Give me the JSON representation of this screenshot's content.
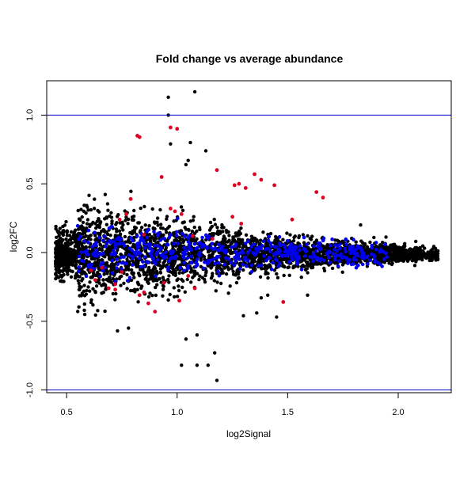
{
  "chart_data": {
    "type": "scatter",
    "title": "Fold change vs average abundance",
    "xlabel": "log2Signal",
    "ylabel": "log2FC",
    "xlim": [
      0.41,
      2.24
    ],
    "ylim": [
      -1.02,
      1.25
    ],
    "x_ticks": [
      "0.5",
      "1.0",
      "1.5",
      "2.0"
    ],
    "y_ticks": [
      "-1.0",
      "-0.5",
      "0.0",
      "0.5",
      "1.0"
    ],
    "x_tick_values": [
      0.5,
      1.0,
      1.5,
      2.0
    ],
    "y_tick_values": [
      -1.0,
      -0.5,
      0.0,
      0.5,
      1.0
    ],
    "reference_lines": [
      1.0,
      -1.0
    ],
    "reference_line_color": "#0000cc",
    "grid": false,
    "legend": "none",
    "colors": {
      "normal": "#000000",
      "down": "#0000ee",
      "up": "#dd0022"
    },
    "outliers": {
      "x": [
        0.96,
        1.08,
        0.96,
        0.97,
        1.06,
        1.13,
        1.05,
        1.04,
        1.18,
        1.14,
        1.17,
        1.09,
        1.02,
        1.04,
        1.09,
        1.36,
        0.73,
        0.78,
        1.83,
        1.89,
        1.3,
        1.38,
        1.41,
        1.45,
        1.59,
        1.99,
        2.06,
        2.17
      ],
      "y": [
        1.13,
        1.17,
        1.0,
        0.79,
        0.8,
        0.74,
        0.67,
        0.64,
        -0.93,
        -0.82,
        -0.73,
        -0.82,
        -0.82,
        -0.63,
        -0.6,
        -0.44,
        -0.57,
        -0.55,
        0.2,
        0.11,
        -0.46,
        -0.33,
        -0.31,
        -0.47,
        -0.31,
        0.02,
        -0.03,
        0.0
      ]
    },
    "series": [
      {
        "color_key": "up",
        "x": [
          0.82,
          0.83,
          0.97,
          1.0,
          1.38,
          1.35,
          1.44,
          1.28,
          1.26,
          1.31,
          1.18,
          0.93,
          1.63,
          1.66,
          0.79,
          1.02,
          0.77,
          0.63,
          0.72,
          0.69,
          0.85,
          0.87,
          0.9,
          0.94,
          1.05,
          1.01,
          0.83,
          1.08,
          1.48,
          1.25,
          0.97,
          0.99,
          1.29,
          1.52,
          0.74,
          0.85,
          1.07,
          1.16,
          0.61,
          0.66,
          0.75,
          0.72
        ],
        "y": [
          0.85,
          0.84,
          0.91,
          0.9,
          0.53,
          0.57,
          0.49,
          0.5,
          0.49,
          0.47,
          0.6,
          0.55,
          0.44,
          0.4,
          0.39,
          0.28,
          0.28,
          -0.2,
          -0.23,
          -0.26,
          -0.29,
          -0.37,
          -0.43,
          -0.22,
          -0.17,
          -0.35,
          -0.31,
          -0.26,
          -0.36,
          0.26,
          0.32,
          0.3,
          0.21,
          0.24,
          0.24,
          0.13,
          0.12,
          0.1,
          -0.13,
          -0.11,
          -0.14,
          -0.27
        ]
      }
    ]
  }
}
